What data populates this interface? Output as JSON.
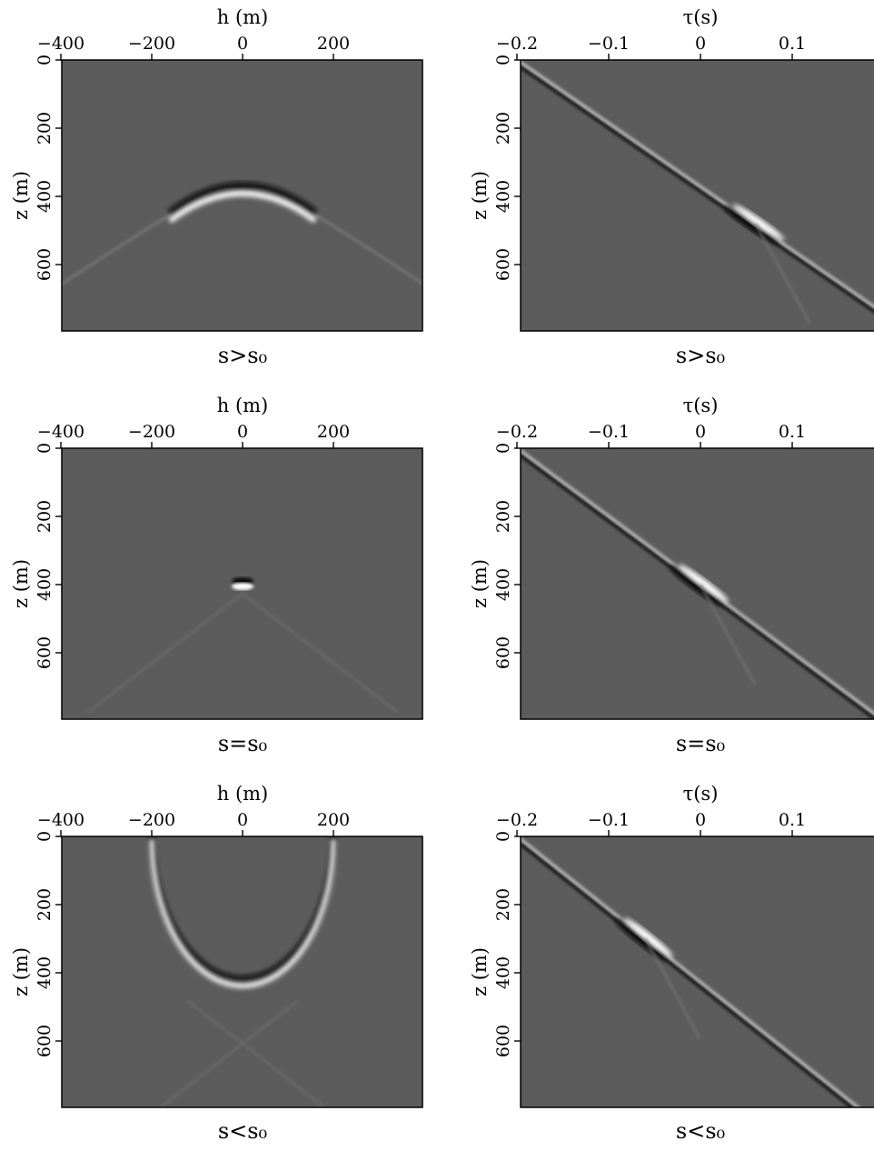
{
  "chart_data": [
    {
      "type": "heatmap",
      "panel": "offset-gather",
      "xlabel": "h (m)",
      "ylabel": "z (m)",
      "xticks": [
        "−400",
        "−200",
        "0",
        "200"
      ],
      "yticks": [
        "0",
        "200",
        "400",
        "600"
      ],
      "xlim": [
        -400,
        400
      ],
      "ylim": [
        0,
        800
      ],
      "caption": "s>s₀",
      "event": {
        "shape": "hyperbola",
        "apex_h": 0,
        "apex_z": 370,
        "asymptote_slope": 0.9
      }
    },
    {
      "type": "heatmap",
      "panel": "time-shift-gather",
      "xlabel": "τ(s)",
      "ylabel": "z (m)",
      "xticks": [
        "−0.2",
        "−0.1",
        "0",
        "0.1"
      ],
      "yticks": [
        "0",
        "200",
        "400",
        "600"
      ],
      "xlim": [
        -0.2,
        0.2
      ],
      "ylim": [
        0,
        800
      ],
      "caption": "s>s₀",
      "event": {
        "shape": "line",
        "tau_start": -0.2,
        "z_start": 0,
        "dz_dtau": 1860,
        "focus_tau": 0.06,
        "focus_z": 480
      }
    },
    {
      "type": "heatmap",
      "panel": "offset-gather",
      "xlabel": "h (m)",
      "ylabel": "z (m)",
      "xticks": [
        "−400",
        "−200",
        "0",
        "200"
      ],
      "yticks": [
        "0",
        "200",
        "400",
        "600"
      ],
      "xlim": [
        -400,
        400
      ],
      "ylim": [
        0,
        800
      ],
      "caption": "s=s₀",
      "event": {
        "shape": "spot",
        "apex_h": 0,
        "apex_z": 400
      }
    },
    {
      "type": "heatmap",
      "panel": "time-shift-gather",
      "xlabel": "τ(s)",
      "ylabel": "z (m)",
      "xticks": [
        "−0.2",
        "−0.1",
        "0",
        "0.1"
      ],
      "yticks": [
        "0",
        "200",
        "400",
        "600"
      ],
      "xlim": [
        -0.2,
        0.2
      ],
      "ylim": [
        0,
        800
      ],
      "caption": "s=s₀",
      "event": {
        "shape": "line",
        "tau_start": -0.2,
        "z_start": 0,
        "dz_dtau": 2000,
        "focus_tau": 0.0,
        "focus_z": 400
      }
    },
    {
      "type": "heatmap",
      "panel": "offset-gather",
      "xlabel": "h (m)",
      "ylabel": "z (m)",
      "xticks": [
        "−400",
        "−200",
        "0",
        "200"
      ],
      "yticks": [
        "0",
        "200",
        "400",
        "600"
      ],
      "xlim": [
        -400,
        400
      ],
      "ylim": [
        0,
        800
      ],
      "caption": "s<s₀",
      "event": {
        "shape": "ellipse",
        "apex_h": 0,
        "apex_z": 430,
        "half_width": 200,
        "height": 430
      }
    },
    {
      "type": "heatmap",
      "panel": "time-shift-gather",
      "xlabel": "τ(s)",
      "ylabel": "z (m)",
      "xticks": [
        "−0.2",
        "−0.1",
        "0",
        "0.1"
      ],
      "yticks": [
        "0",
        "200",
        "400",
        "600"
      ],
      "xlim": [
        -0.2,
        0.2
      ],
      "ylim": [
        0,
        800
      ],
      "caption": "s<s₀",
      "event": {
        "shape": "line",
        "tau_start": -0.2,
        "z_start": 0,
        "dz_dtau": 2140,
        "focus_tau": -0.06,
        "focus_z": 300
      }
    }
  ],
  "colors": {
    "background": "#5c5c5c",
    "frame": "#000000",
    "bright": "#ffffff",
    "dark": "#111111"
  }
}
